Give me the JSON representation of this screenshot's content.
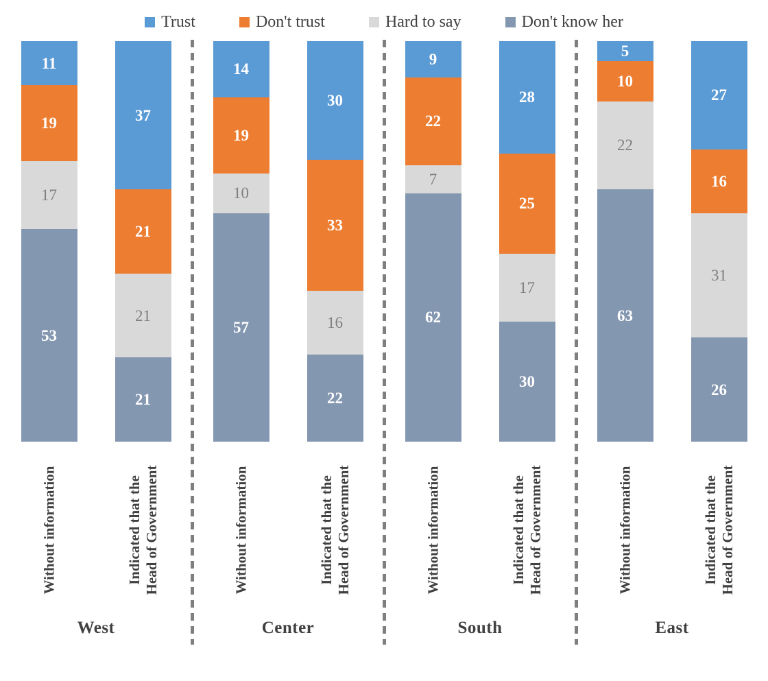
{
  "chart_data": {
    "type": "bar",
    "subtype": "100-percent-stacked-column",
    "title": "",
    "legend_position": "top",
    "grid": false,
    "axis_range": [
      0,
      100
    ],
    "series": [
      {
        "name": "Trust",
        "color": "#5b9bd5",
        "value_label_color": "#ffffff",
        "value_label_bold": true
      },
      {
        "name": "Don't trust",
        "color": "#ed7d31",
        "value_label_color": "#ffffff",
        "value_label_bold": true
      },
      {
        "name": "Hard to say",
        "color": "#d9d9d9",
        "value_label_color": "#7f7f7f",
        "value_label_bold": false
      },
      {
        "name": "Don't know her",
        "color": "#8497b0",
        "value_label_color": "#ffffff",
        "value_label_bold": true
      }
    ],
    "groups": [
      {
        "region": "West",
        "bars": [
          {
            "label": "Without information",
            "values": [
              11,
              19,
              17,
              53
            ]
          },
          {
            "label": "Indicated that the Head of Government",
            "values": [
              37,
              21,
              21,
              21
            ]
          }
        ]
      },
      {
        "region": "Center",
        "bars": [
          {
            "label": "Without information",
            "values": [
              14,
              19,
              10,
              57
            ]
          },
          {
            "label": "Indicated that the Head of Government",
            "values": [
              30,
              33,
              16,
              22
            ]
          }
        ]
      },
      {
        "region": "South",
        "bars": [
          {
            "label": "Without information",
            "values": [
              9,
              22,
              7,
              62
            ]
          },
          {
            "label": "Indicated that the Head of Government",
            "values": [
              28,
              25,
              17,
              30
            ]
          }
        ]
      },
      {
        "region": "East",
        "bars": [
          {
            "label": "Without information",
            "values": [
              5,
              10,
              22,
              63
            ]
          },
          {
            "label": "Indicated that the Head of Government",
            "values": [
              27,
              16,
              31,
              26
            ]
          }
        ]
      }
    ],
    "styles": {
      "text_color": "#404040",
      "gray_value_label_color": "#7f7f7f",
      "separator_color": "#7f7f7f",
      "background": "#ffffff"
    }
  }
}
